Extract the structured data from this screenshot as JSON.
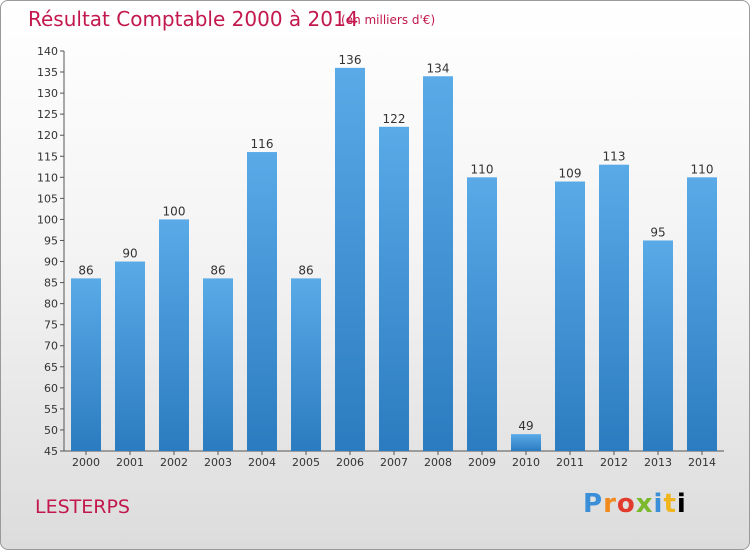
{
  "header": {
    "title": "Résultat Comptable 2000 à 2014",
    "subtitle": "(en milliers d'€)"
  },
  "footer": {
    "place": "LESTERPS",
    "logo": "Proxiti"
  },
  "colors": {
    "title": "#c2184d",
    "bar_light": "#5aaae8",
    "bar_dark": "#2b7bc0"
  },
  "chart_data": {
    "type": "bar",
    "title": "Résultat Comptable 2000 à 2014",
    "subtitle": "(en milliers d'€)",
    "categories": [
      "2000",
      "2001",
      "2002",
      "2003",
      "2004",
      "2005",
      "2006",
      "2007",
      "2008",
      "2009",
      "2010",
      "2011",
      "2012",
      "2013",
      "2014"
    ],
    "values": [
      86,
      90,
      100,
      86,
      116,
      86,
      136,
      122,
      134,
      110,
      49,
      109,
      113,
      95,
      110
    ],
    "ylim": [
      45,
      140
    ],
    "yticks": [
      45,
      50,
      55,
      60,
      65,
      70,
      75,
      80,
      85,
      90,
      95,
      100,
      105,
      110,
      115,
      120,
      125,
      130,
      135,
      140
    ],
    "grid": false,
    "legend": "none",
    "data_labels": true
  }
}
